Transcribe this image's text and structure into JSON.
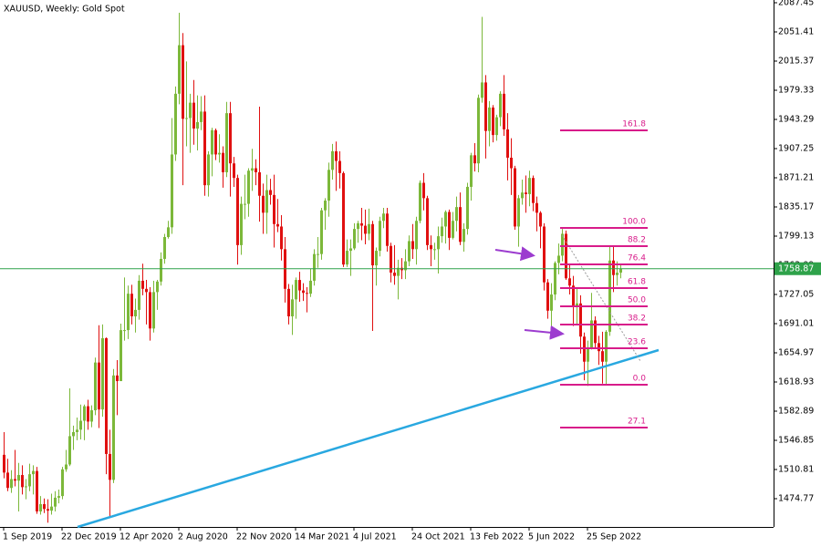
{
  "chart_data": {
    "type": "candlestick",
    "title": "XAUUSD, Weekly:  Gold Spot",
    "categories": [
      "1 Sep 2019",
      null,
      null,
      null,
      null,
      null,
      null,
      null,
      null,
      null,
      null,
      null,
      null,
      null,
      null,
      null,
      "22 Dec 2019",
      null,
      null,
      null,
      null,
      null,
      null,
      null,
      null,
      null,
      null,
      null,
      null,
      null,
      null,
      null,
      "12 Apr 2020",
      null,
      null,
      null,
      null,
      null,
      null,
      null,
      null,
      null,
      null,
      null,
      null,
      null,
      null,
      null,
      "2 Aug 2020",
      null,
      null,
      null,
      null,
      null,
      null,
      null,
      null,
      null,
      null,
      null,
      null,
      null,
      null,
      null,
      "22 Nov 2020",
      null,
      null,
      null,
      null,
      null,
      null,
      null,
      null,
      null,
      null,
      null,
      null,
      null,
      null,
      null,
      "14 Mar 2021",
      null,
      null,
      null,
      null,
      null,
      null,
      null,
      null,
      null,
      null,
      null,
      null,
      null,
      null,
      null,
      "4 Jul 2021",
      null,
      null,
      null,
      null,
      null,
      null,
      null,
      null,
      null,
      null,
      null,
      null,
      null,
      null,
      null,
      "24 Oct 2021",
      null,
      null,
      null,
      null,
      null,
      null,
      null,
      null,
      null,
      null,
      null,
      null,
      null,
      null,
      null,
      "13 Feb 2022",
      null,
      null,
      null,
      null,
      null,
      null,
      null,
      null,
      null,
      null,
      null,
      null,
      null,
      null,
      null,
      "5 Jun 2022",
      null,
      null,
      null,
      null,
      null,
      null,
      null,
      null,
      null,
      null,
      null,
      null,
      null,
      null,
      null,
      "25 Sep 2022",
      null,
      null,
      null,
      null,
      null,
      null,
      null,
      null,
      null
    ],
    "open": [
      1529,
      1507,
      1488,
      1499,
      1497,
      1504,
      1489,
      1490,
      1505,
      1509,
      1459,
      1468,
      1462,
      1460,
      1465,
      1476,
      1478,
      1511,
      1517,
      1552,
      1557,
      1560,
      1571,
      1589,
      1570,
      1584,
      1643,
      1585,
      1673,
      1530,
      1498,
      1627,
      1620,
      1683,
      1683,
      1728,
      1700,
      1708,
      1744,
      1734,
      1730,
      1685,
      1730,
      1743,
      1771,
      1798,
      1810,
      1900,
      1975,
      2035,
      1944,
      1945,
      1964,
      1932,
      1940,
      1953,
      1862,
      1900,
      1930,
      1900,
      1902,
      1878,
      1951,
      1889,
      1871,
      1788,
      1839,
      1839,
      1880,
      1883,
      1878,
      1849,
      1828,
      1856,
      1850,
      1814,
      1811,
      1783,
      1734,
      1700,
      1721,
      1745,
      1732,
      1729,
      1728,
      1744,
      1777,
      1777,
      1831,
      1843,
      1881,
      1904,
      1892,
      1877,
      1764,
      1781,
      1784,
      1808,
      1815,
      1812,
      1802,
      1814,
      1763,
      1781,
      1818,
      1827,
      1787,
      1754,
      1750,
      1760,
      1757,
      1768,
      1793,
      1783,
      1818,
      1865,
      1846,
      1788,
      1783,
      1783,
      1799,
      1811,
      1829,
      1797,
      1818,
      1835,
      1792,
      1808,
      1860,
      1899,
      1889,
      1970,
      1989,
      1929,
      1958,
      1924,
      1946,
      1975,
      1931,
      1896,
      1883,
      1811,
      1846,
      1853,
      1851,
      1871,
      1840,
      1828,
      1811,
      1742,
      1707,
      1727,
      1766,
      1775,
      1802,
      1747,
      1738,
      1712,
      1716,
      1675,
      1644,
      1660,
      1695,
      1667,
      1657,
      1644,
      1681,
      1769,
      1751,
      1754
    ],
    "high": [
      1557,
      1524,
      1510,
      1535,
      1519,
      1516,
      1499,
      1518,
      1516,
      1514,
      1478,
      1475,
      1474,
      1481,
      1484,
      1486,
      1514,
      1535,
      1611,
      1565,
      1575,
      1591,
      1591,
      1597,
      1590,
      1649,
      1689,
      1690,
      1674,
      1560,
      1635,
      1646,
      1691,
      1748,
      1738,
      1739,
      1722,
      1751,
      1765,
      1745,
      1736,
      1744,
      1745,
      1779,
      1802,
      1818,
      1945,
      1984,
      2075,
      2050,
      2015,
      1975,
      1992,
      1973,
      1972,
      1973,
      1904,
      1933,
      1932,
      1925,
      1910,
      1965,
      1965,
      1897,
      1875,
      1848,
      1875,
      1883,
      1907,
      1894,
      1959,
      1864,
      1875,
      1870,
      1875,
      1845,
      1825,
      1798,
      1740,
      1739,
      1748,
      1755,
      1741,
      1736,
      1759,
      1783,
      1798,
      1834,
      1846,
      1890,
      1913,
      1916,
      1904,
      1879,
      1795,
      1795,
      1815,
      1818,
      1834,
      1832,
      1833,
      1818,
      1785,
      1823,
      1834,
      1834,
      1791,
      1788,
      1770,
      1772,
      1783,
      1800,
      1814,
      1823,
      1868,
      1877,
      1849,
      1800,
      1791,
      1811,
      1822,
      1831,
      1832,
      1829,
      1848,
      1853,
      1815,
      1865,
      1902,
      1914,
      1974,
      2070,
      1998,
      1966,
      1961,
      1949,
      1978,
      1998,
      1951,
      1920,
      1886,
      1850,
      1869,
      1874,
      1880,
      1874,
      1848,
      1830,
      1815,
      1746,
      1741,
      1768,
      1790,
      1808,
      1806,
      1765,
      1750,
      1735,
      1726,
      1680,
      1670,
      1729,
      1700,
      1676,
      1681,
      1683,
      1786,
      1786,
      1768,
      1764
    ],
    "low": [
      1500,
      1484,
      1482,
      1490,
      1459,
      1480,
      1474,
      1484,
      1480,
      1456,
      1455,
      1457,
      1445,
      1455,
      1459,
      1469,
      1474,
      1508,
      1515,
      1535,
      1547,
      1548,
      1547,
      1560,
      1563,
      1578,
      1562,
      1576,
      1505,
      1451,
      1494,
      1578,
      1620,
      1670,
      1672,
      1690,
      1680,
      1696,
      1726,
      1690,
      1670,
      1680,
      1708,
      1738,
      1765,
      1796,
      1802,
      1892,
      1962,
      1862,
      1910,
      1902,
      1912,
      1905,
      1930,
      1849,
      1848,
      1873,
      1893,
      1890,
      1859,
      1872,
      1848,
      1860,
      1764,
      1776,
      1820,
      1823,
      1855,
      1862,
      1817,
      1802,
      1802,
      1838,
      1785,
      1804,
      1769,
      1717,
      1690,
      1677,
      1697,
      1718,
      1719,
      1705,
      1724,
      1738,
      1760,
      1770,
      1807,
      1823,
      1869,
      1855,
      1858,
      1761,
      1761,
      1750,
      1782,
      1791,
      1794,
      1789,
      1794,
      1682,
      1738,
      1774,
      1809,
      1780,
      1742,
      1739,
      1721,
      1746,
      1746,
      1762,
      1771,
      1764,
      1815,
      1831,
      1782,
      1762,
      1770,
      1753,
      1791,
      1790,
      1782,
      1795,
      1805,
      1788,
      1780,
      1801,
      1843,
      1879,
      1878,
      1964,
      1895,
      1910,
      1915,
      1917,
      1935,
      1923,
      1868,
      1850,
      1807,
      1786,
      1838,
      1828,
      1836,
      1830,
      1805,
      1784,
      1732,
      1697,
      1680,
      1720,
      1752,
      1768,
      1745,
      1727,
      1688,
      1691,
      1654,
      1621,
      1614,
      1659,
      1660,
      1640,
      1617,
      1616,
      1676,
      1730,
      1738,
      1747
    ],
    "close": [
      1507,
      1488,
      1499,
      1497,
      1504,
      1489,
      1490,
      1505,
      1509,
      1459,
      1468,
      1462,
      1460,
      1465,
      1476,
      1478,
      1511,
      1517,
      1552,
      1557,
      1560,
      1571,
      1589,
      1570,
      1584,
      1643,
      1585,
      1673,
      1530,
      1498,
      1627,
      1620,
      1683,
      1683,
      1728,
      1700,
      1708,
      1744,
      1734,
      1730,
      1685,
      1730,
      1743,
      1771,
      1798,
      1810,
      1900,
      1975,
      2035,
      1944,
      1945,
      1964,
      1932,
      1940,
      1953,
      1862,
      1900,
      1930,
      1900,
      1902,
      1878,
      1951,
      1889,
      1871,
      1788,
      1839,
      1839,
      1880,
      1883,
      1878,
      1849,
      1828,
      1856,
      1850,
      1814,
      1811,
      1783,
      1734,
      1700,
      1721,
      1745,
      1732,
      1729,
      1728,
      1744,
      1777,
      1777,
      1831,
      1843,
      1881,
      1904,
      1892,
      1877,
      1764,
      1781,
      1784,
      1808,
      1815,
      1812,
      1802,
      1814,
      1763,
      1781,
      1818,
      1827,
      1787,
      1754,
      1750,
      1760,
      1757,
      1768,
      1793,
      1783,
      1818,
      1865,
      1846,
      1788,
      1783,
      1783,
      1799,
      1811,
      1829,
      1797,
      1818,
      1835,
      1792,
      1808,
      1860,
      1899,
      1889,
      1970,
      1989,
      1929,
      1958,
      1924,
      1946,
      1975,
      1931,
      1896,
      1883,
      1811,
      1846,
      1853,
      1851,
      1871,
      1840,
      1828,
      1811,
      1742,
      1707,
      1727,
      1766,
      1775,
      1802,
      1747,
      1738,
      1712,
      1716,
      1675,
      1644,
      1660,
      1695,
      1667,
      1657,
      1644,
      1681,
      1769,
      1751,
      1754,
      1759
    ],
    "up_color": "#7cb83a",
    "down_color": "#e01010",
    "ylim": [
      1439.85,
      2090.83
    ],
    "yticks": [
      2087.45,
      2051.41,
      2015.37,
      1979.33,
      1943.29,
      1907.25,
      1871.21,
      1835.17,
      1799.13,
      1763.09,
      1727.05,
      1691.01,
      1654.97,
      1618.93,
      1582.89,
      1546.85,
      1510.81,
      1474.77
    ],
    "current_price": 1758.87,
    "price_line_color": "#2ea24a",
    "fib_color": "#d81b8a",
    "fib_levels": [
      {
        "label": "161.8",
        "price": 1929.8
      },
      {
        "label": "100.0",
        "price": 1809.2
      },
      {
        "label": "88.2",
        "price": 1786.7
      },
      {
        "label": "76.4",
        "price": 1764.2
      },
      {
        "label": "61.8",
        "price": 1734.9
      },
      {
        "label": "50.0",
        "price": 1712.4
      },
      {
        "label": "38.2",
        "price": 1689.9
      },
      {
        "label": "23.6",
        "price": 1660.6
      },
      {
        "label": "0.0",
        "price": 1615.5
      },
      {
        "label": "27.1",
        "price": 1562.6
      }
    ]
  }
}
